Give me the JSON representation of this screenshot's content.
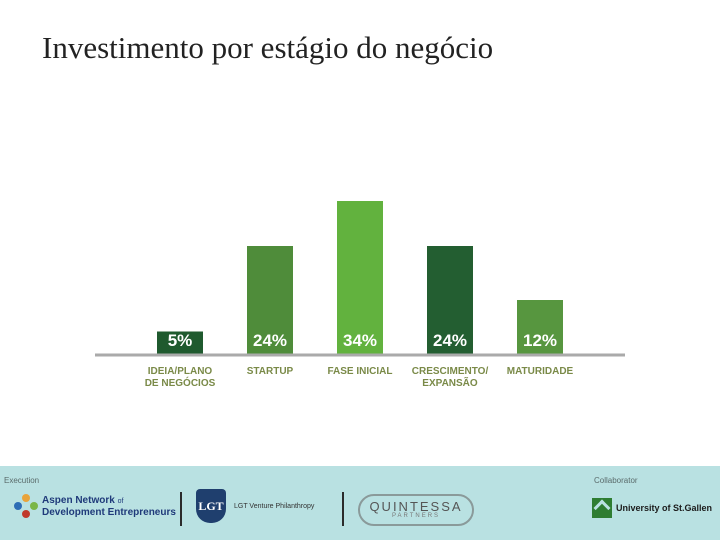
{
  "slide": {
    "title": "Investimento por estágio do negócio"
  },
  "chart_data": {
    "type": "bar",
    "categories": [
      [
        "IDEIA/PLANO",
        "DE NEGÓCIOS"
      ],
      [
        "STARTUP"
      ],
      [
        "FASE INICIAL"
      ],
      [
        "CRESCIMENTO/",
        "EXPANSÃO"
      ],
      [
        "MATURIDADE"
      ]
    ],
    "values": [
      5,
      24,
      34,
      24,
      12
    ],
    "value_labels": [
      "5%",
      "24%",
      "34%",
      "24%",
      "12%"
    ],
    "bar_colors": [
      "#1f5a2e",
      "#4f8c3a",
      "#62b23e",
      "#235e31",
      "#57963f"
    ],
    "label_color": "#7a8a48",
    "axis_color": "#aaaaaa",
    "ylim": [
      0,
      34
    ]
  },
  "footer": {
    "left_label": "Execution",
    "right_label": "Collaborator",
    "aspen": {
      "line1": "Aspen Network",
      "of": "of",
      "line2": "Development Entrepreneurs"
    },
    "lgt": {
      "crest": "LGT",
      "text": "LGT Venture Philanthropy"
    },
    "quintessa": {
      "name": "QUINTESSA",
      "sub": "PARTNERS"
    },
    "hsg": {
      "text": "University of St.Gallen"
    },
    "colors": {
      "background": "#b9e1e2",
      "aspen_text": "#1f3a7a",
      "lgt": "#1f3f6e",
      "hsg": "#2e7d32"
    }
  }
}
